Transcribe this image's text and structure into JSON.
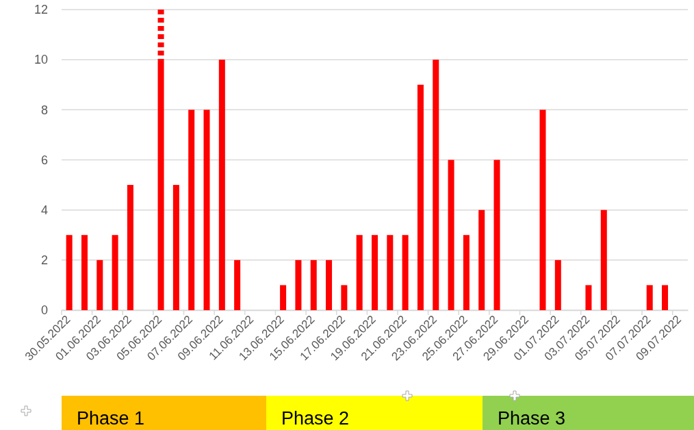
{
  "chart_data": {
    "type": "bar",
    "stacked": true,
    "categories": [
      "30.05.2022",
      null,
      "01.06.2022",
      null,
      "03.06.2022",
      null,
      "05.06.2022",
      null,
      "07.06.2022",
      null,
      "09.06.2022",
      null,
      "11.06.2022",
      null,
      "13.06.2022",
      null,
      "15.06.2022",
      null,
      "17.06.2022",
      null,
      "19.06.2022",
      null,
      "21.06.2022",
      null,
      "23.06.2022",
      null,
      "25.06.2022",
      null,
      "27.06.2022",
      null,
      "29.06.2022",
      null,
      "01.07.2022",
      null,
      "03.07.2022",
      null,
      "05.07.2022",
      null,
      "07.07.2022",
      null,
      "09.07.2022"
    ],
    "series": [
      {
        "color": "#ff0000",
        "values": [
          3,
          3,
          2,
          3,
          5,
          0,
          10,
          5,
          8,
          8,
          10,
          2,
          0,
          0,
          1,
          2,
          2,
          2,
          1,
          3,
          3,
          3,
          3,
          9,
          10,
          6,
          3,
          4,
          6,
          0,
          0,
          8,
          2,
          0,
          1,
          4,
          0,
          0,
          1,
          1,
          0
        ]
      },
      {
        "color": "#ff0000",
        "line_style": "dotted",
        "values": [
          0,
          0,
          0,
          0,
          0,
          0,
          2,
          0,
          0,
          0,
          0,
          0,
          0,
          0,
          0,
          0,
          0,
          0,
          0,
          0,
          0,
          0,
          0,
          0,
          0,
          0,
          0,
          0,
          0,
          0,
          0,
          0,
          0,
          0,
          0,
          0,
          0,
          0,
          0,
          0,
          0
        ]
      }
    ],
    "ylim": [
      0,
      12
    ],
    "yticks": [
      0,
      2,
      4,
      6,
      8,
      10,
      12
    ],
    "grid": "y",
    "annotations": [
      "Phase 1",
      "Phase 2",
      "Phase 3"
    ]
  }
}
